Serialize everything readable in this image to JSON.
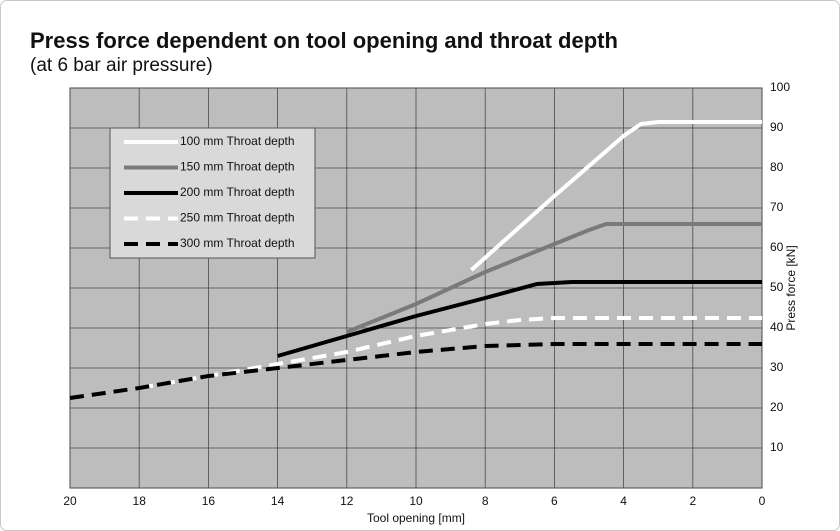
{
  "chart_data": {
    "type": "line",
    "title": "Press force dependent on tool opening and throat depth",
    "subtitle": "(at 6 bar air pressure)",
    "x_label": "Tool opening [mm]",
    "y_label": "Press force [kN]",
    "xlim": [
      20,
      0
    ],
    "xticks": [
      20,
      18,
      16,
      14,
      12,
      10,
      8,
      6,
      4,
      2,
      0
    ],
    "ylim": [
      0,
      100
    ],
    "yticks": [
      10,
      20,
      30,
      40,
      50,
      60,
      70,
      80,
      90,
      100
    ],
    "grid": true,
    "y_axis_side": "right",
    "legend": "upper left",
    "series": [
      {
        "name": "100 mm Throat depth",
        "color": "#ffffff",
        "dashed": false,
        "x": [
          8.4,
          6,
          4,
          3.5,
          3,
          0
        ],
        "values": [
          54.5,
          73,
          88,
          91,
          91.5,
          91.5
        ]
      },
      {
        "name": "150 mm Throat depth",
        "color": "#7a7a7a",
        "dashed": false,
        "x": [
          12,
          10,
          8,
          6,
          5,
          4.5,
          4,
          0
        ],
        "values": [
          39,
          46,
          54,
          61,
          64.5,
          66,
          66,
          66
        ]
      },
      {
        "name": "200 mm Throat depth",
        "color": "#000000",
        "dashed": false,
        "x": [
          14,
          12,
          10,
          8,
          6.5,
          5.5,
          0
        ],
        "values": [
          33,
          38,
          43,
          47.5,
          51,
          51.5,
          51.5
        ]
      },
      {
        "name": "250 mm Throat depth",
        "color": "#ffffff",
        "dashed": true,
        "x": [
          18,
          16,
          14,
          12,
          10,
          8,
          7,
          6,
          0
        ],
        "values": [
          25,
          28,
          31,
          34,
          38,
          41,
          42,
          42.5,
          42.5
        ]
      },
      {
        "name": "300 mm Throat depth",
        "color": "#000000",
        "dashed": true,
        "x": [
          20,
          18,
          16,
          14,
          12,
          10,
          8,
          6,
          0
        ],
        "values": [
          22.5,
          25,
          28,
          30,
          32,
          34,
          35.5,
          36,
          36
        ]
      }
    ]
  }
}
